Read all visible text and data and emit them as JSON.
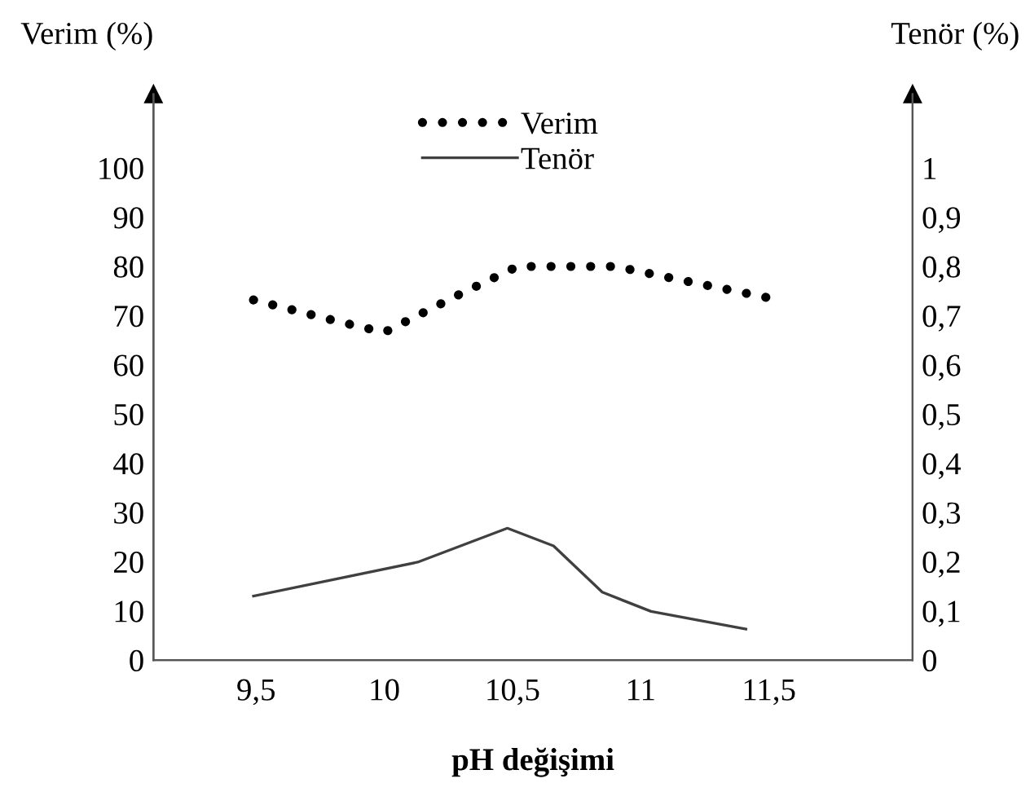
{
  "chart_data": {
    "type": "line",
    "xlabel": "pH değişimi",
    "ylabel": "Verim (%)",
    "y2label": "Tenör (%)",
    "series": [
      {
        "name": "Verim",
        "color": "#000000",
        "line_style": "dotted",
        "axis": "y",
        "x": [
          9.49,
          9.82,
          10.0,
          10.3,
          10.52,
          10.9,
          11.15,
          11.49
        ],
        "values": [
          73.2,
          68.8,
          66.6,
          74.5,
          80,
          80,
          77.3,
          73.7
        ]
      },
      {
        "name": "Tenör",
        "color": "#404040",
        "line_style": "solid",
        "axis": "y2",
        "x": [
          9.49,
          10.13,
          10.48,
          10.66,
          10.85,
          11.04,
          11.41
        ],
        "values": [
          0.13,
          0.199,
          0.268,
          0.232,
          0.138,
          0.099,
          0.063
        ]
      }
    ],
    "xlim": [
      9.1,
      12.06
    ],
    "xticks": [
      {
        "value": 9.5,
        "label": "9,5"
      },
      10,
      {
        "value": 10.5,
        "label": "10,5"
      },
      11,
      {
        "value": 11.5,
        "label": "11,5"
      }
    ],
    "ylim": [
      0,
      115
    ],
    "yticks": [
      0,
      10,
      20,
      30,
      40,
      50,
      60,
      70,
      80,
      90,
      100
    ],
    "y2lim": [
      0,
      1.15
    ],
    "y2ticks": [
      0,
      {
        "value": 0.1,
        "label": "0,1"
      },
      {
        "value": 0.2,
        "label": "0,2"
      },
      {
        "value": 0.3,
        "label": "0,3"
      },
      {
        "value": 0.4,
        "label": "0,4"
      },
      {
        "value": 0.5,
        "label": "0,5"
      },
      {
        "value": 0.6,
        "label": "0,6"
      },
      {
        "value": 0.7,
        "label": "0,7"
      },
      {
        "value": 0.8,
        "label": "0,8"
      },
      {
        "value": 0.9,
        "label": "0,9"
      },
      1
    ],
    "legend": "top",
    "grid": false
  }
}
